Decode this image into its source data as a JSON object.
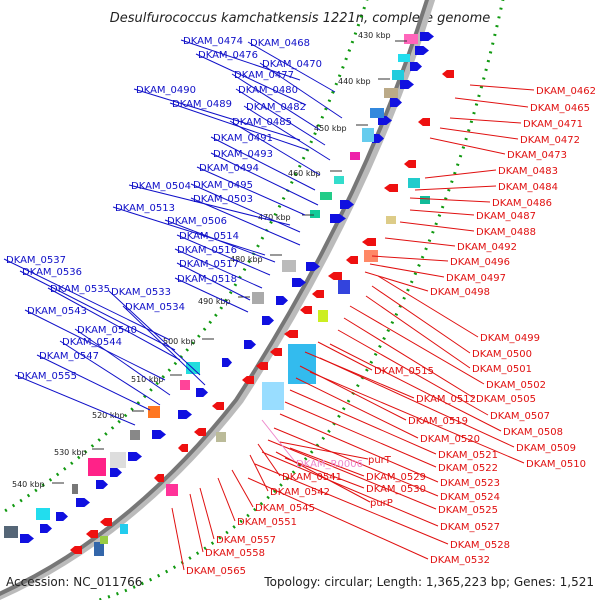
{
  "title": "Desulfurococcus kamchatkensis 1221n, complete genome",
  "footer": {
    "accession": "Accession: NC_011766",
    "stats": "Topology: circular; Length: 1,365,223 bp; Genes: 1,521"
  },
  "colors": {
    "left_labels": "#1010c8",
    "right_labels": "#e01010",
    "rna_label": "#ee88cc",
    "forward_genes": "#1010e0",
    "reverse_genes": "#ee1010",
    "backbone": "#888888",
    "dotted_ring": "#119911"
  },
  "ticks": [
    "430 kbp",
    "440 kbp",
    "450 kbp",
    "460 kbp",
    "470 kbp",
    "480 kbp",
    "490 kbp",
    "500 kbp",
    "510 kbp",
    "520 kbp",
    "530 kbp",
    "540 kbp"
  ],
  "left_labels": [
    "DKAM_0474",
    "DKAM_0468",
    "DKAM_0476",
    "DKAM_0470",
    "DKAM_0477",
    "DKAM_0490",
    "DKAM_0480",
    "DKAM_0489",
    "DKAM_0482",
    "DKAM_0485",
    "DKAM_0491",
    "DKAM_0493",
    "DKAM_0494",
    "DKAM_0504",
    "DKAM_0495",
    "DKAM_0503",
    "DKAM_0513",
    "DKAM_0506",
    "DKAM_0514",
    "DKAM_0516",
    "DKAM_0537",
    "DKAM_0517",
    "DKAM_0536",
    "DKAM_0518",
    "DKAM_0535",
    "DKAM_0533",
    "DKAM_0534",
    "DKAM_0543",
    "DKAM_0540",
    "DKAM_0544",
    "DKAM_0547",
    "DKAM_0555"
  ],
  "right_labels": [
    "DKAM_0462",
    "DKAM_0465",
    "DKAM_0471",
    "DKAM_0472",
    "DKAM_0473",
    "DKAM_0483",
    "DKAM_0484",
    "DKAM_0486",
    "DKAM_0487",
    "DKAM_0488",
    "DKAM_0492",
    "DKAM_0496",
    "DKAM_0497",
    "DKAM_0498",
    "DKAM_0499",
    "DKAM_0500",
    "DKAM_0501",
    "DKAM_0515",
    "DKAM_0502",
    "DKAM_0512",
    "DKAM_0505",
    "DKAM_0507",
    "DKAM_0519",
    "DKAM_0508",
    "DKAM_0520",
    "DKAM_0509",
    "DKAM_0521",
    "DKAM_0510",
    "DKAM_0522",
    "DKAM_0523",
    "DKAM_0541",
    "DKAM_0529",
    "DKAM_0542",
    "DKAM_0530",
    "DKAM_0524",
    "DKAM_0545",
    "DKAM_0525",
    "DKAM_0551",
    "DKAM_0527",
    "DKAM_0557",
    "DKAM_0528",
    "DKAM_0558",
    "DKAM_0532",
    "DKAM_0565"
  ],
  "special_labels": [
    "DKAM_R0006",
    "purT",
    "purP"
  ]
}
